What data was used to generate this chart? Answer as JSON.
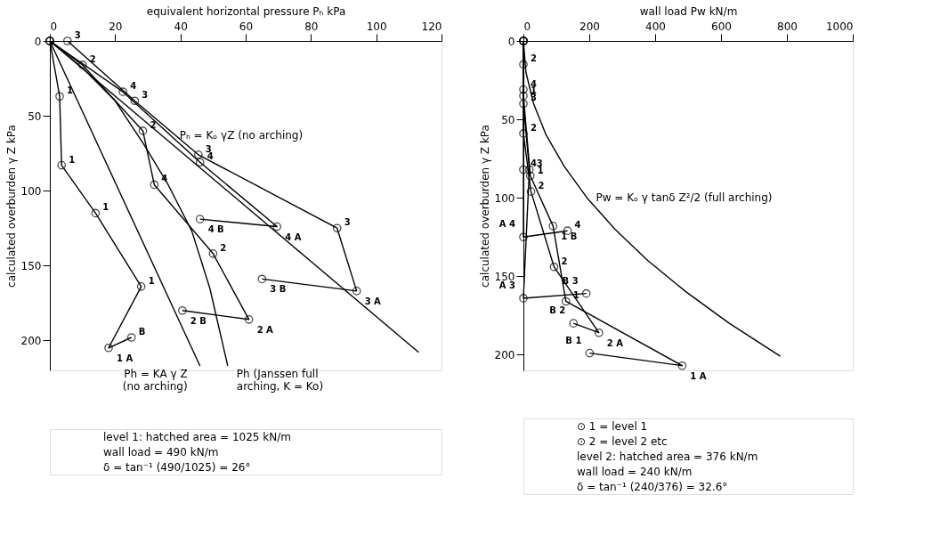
{
  "chart_data": [
    {
      "type": "line",
      "xlabel": "equivalent horizontal pressure Pₕ kPa",
      "ylabel": "calculated overburden γ Z kPa",
      "xlim": [
        0,
        120
      ],
      "xticks": [
        0,
        20,
        40,
        60,
        80,
        100,
        120
      ],
      "ylim": [
        220,
        0
      ],
      "yticks": [
        0,
        50,
        100,
        150,
        200
      ],
      "grid": false,
      "line_style": "solid",
      "series": [
        {
          "color": "#000000",
          "marker": "circle",
          "x": [
            0,
            3,
            3.6,
            14,
            28,
            18,
            25
          ],
          "values": [
            0,
            37,
            83,
            115,
            164,
            205,
            198
          ]
        },
        {
          "color": "#000000",
          "marker": "circle",
          "x": [
            0,
            10,
            28.5,
            32,
            50,
            61,
            40.6
          ],
          "values": [
            0,
            16,
            60,
            96,
            142,
            186,
            180
          ]
        },
        {
          "color": "#000000",
          "marker": "circle",
          "x": [
            5.4,
            26,
            45.5,
            88,
            94,
            65
          ],
          "values": [
            0,
            40,
            76,
            125,
            167,
            159
          ]
        },
        {
          "color": "#000000",
          "marker": "circle",
          "x": [
            0,
            22.4,
            46,
            69.6,
            46
          ],
          "values": [
            0,
            34,
            81,
            124,
            119
          ]
        },
        {
          "color": "#000000",
          "marker": "none",
          "x": [
            0,
            113
          ],
          "values": [
            0,
            208
          ]
        },
        {
          "color": "#000000",
          "marker": "none",
          "x": [
            0,
            46
          ],
          "values": [
            0,
            217
          ]
        },
        {
          "color": "#000000",
          "marker": "none",
          "x": [
            0,
            10,
            20,
            28.8,
            36,
            43.5,
            49,
            54.5
          ],
          "values": [
            0,
            18,
            40,
            69,
            95,
            127,
            165,
            217
          ]
        }
      ],
      "annotations": [
        {
          "text": "1",
          "x": 3,
          "y": 37
        },
        {
          "text": "1",
          "x": 3.6,
          "y": 83
        },
        {
          "text": "1",
          "x": 14,
          "y": 115
        },
        {
          "text": "1",
          "x": 28,
          "y": 164
        },
        {
          "text": "1 A",
          "x": 18,
          "y": 205
        },
        {
          "text": "B",
          "x": 25,
          "y": 198
        },
        {
          "text": "2",
          "x": 10,
          "y": 16
        },
        {
          "text": "2",
          "x": 28.5,
          "y": 60
        },
        {
          "text": "4",
          "x": 32,
          "y": 96
        },
        {
          "text": "2",
          "x": 50,
          "y": 142
        },
        {
          "text": "2 A",
          "x": 61,
          "y": 186
        },
        {
          "text": "2 B",
          "x": 40.6,
          "y": 180
        },
        {
          "text": "3",
          "x": 5.4,
          "y": 0
        },
        {
          "text": "3",
          "x": 26,
          "y": 40
        },
        {
          "text": "3",
          "x": 45.5,
          "y": 76
        },
        {
          "text": "3",
          "x": 88,
          "y": 125
        },
        {
          "text": "3 A",
          "x": 94,
          "y": 167
        },
        {
          "text": "3 B",
          "x": 65,
          "y": 159
        },
        {
          "text": "4",
          "x": 22.4,
          "y": 34
        },
        {
          "text": "4",
          "x": 46,
          "y": 81
        },
        {
          "text": "4 A",
          "x": 69.6,
          "y": 124
        },
        {
          "text": "4 B",
          "x": 46,
          "y": 119
        },
        {
          "text": "Pₕ = Kₒ γZ (no arching)",
          "x": 37,
          "y": 63
        },
        {
          "text": "Ph (Janssen full\narching, K = Ko)",
          "x": 54.5,
          "y": 217
        },
        {
          "text": "Ph = KA γ Z\n(no arching)",
          "x": 46,
          "y": 217
        },
        "level 1: hatched area = 1025 kN/m",
        "wall load = 490 kN/m",
        "δ = tan⁻¹ (490/1025) = 26°"
      ]
    },
    {
      "type": "line",
      "xlabel": "wall load Pw kN/m",
      "ylabel": "calculated overburden γ Z kPa",
      "xlim": [
        0,
        1000
      ],
      "xticks": [
        0,
        200,
        400,
        600,
        800,
        1000
      ],
      "ylim": [
        210,
        0
      ],
      "yticks": [
        0,
        50,
        100,
        150,
        200
      ],
      "grid": false,
      "line_style": "solid",
      "series": [
        {
          "color": "#000000",
          "marker": "circle",
          "x": [
            0,
            0,
            21,
            90,
            129,
            482,
            201
          ],
          "values": [
            0,
            35,
            86,
            118,
            166,
            207,
            199
          ]
        },
        {
          "color": "#000000",
          "marker": "circle",
          "x": [
            0,
            0,
            0,
            23,
            93,
            229,
            152
          ],
          "values": [
            0,
            15,
            59,
            96,
            144,
            186,
            180
          ]
        },
        {
          "color": "#000000",
          "marker": "circle",
          "x": [
            0,
            0,
            18,
            0,
            191
          ],
          "values": [
            0,
            40,
            82,
            164,
            161
          ]
        },
        {
          "color": "#000000",
          "marker": "circle",
          "x": [
            0,
            0,
            0,
            0,
            134
          ],
          "values": [
            0,
            31,
            82,
            125,
            121
          ]
        },
        {
          "color": "#000000",
          "marker": "none",
          "x": [
            0,
            7.7,
            31,
            69,
            124,
            193,
            278,
            378,
            494,
            625,
            780
          ],
          "values": [
            0,
            20,
            40,
            60,
            80,
            100,
            120,
            140,
            160,
            180,
            201
          ]
        }
      ],
      "annotations": [
        {
          "text": "1",
          "x": 0,
          "y": 35
        },
        {
          "text": "1",
          "x": 21,
          "y": 86
        },
        {
          "text": "1 B",
          "x": 90,
          "y": 118
        },
        {
          "text": "1",
          "x": 129,
          "y": 166
        },
        {
          "text": "1 A",
          "x": 482,
          "y": 207
        },
        {
          "text": "B 1",
          "x": 201,
          "y": 199
        },
        {
          "text": "2",
          "x": 0,
          "y": 15
        },
        {
          "text": "2",
          "x": 0,
          "y": 59
        },
        {
          "text": "2",
          "x": 23,
          "y": 96
        },
        {
          "text": "2",
          "x": 93,
          "y": 144
        },
        {
          "text": "2 A",
          "x": 229,
          "y": 186
        },
        {
          "text": "B 2",
          "x": 152,
          "y": 180
        },
        {
          "text": "3",
          "x": 0,
          "y": 40
        },
        {
          "text": "3",
          "x": 18,
          "y": 82
        },
        {
          "text": "A 3",
          "x": 0,
          "y": 164
        },
        {
          "text": "B 3",
          "x": 191,
          "y": 161
        },
        {
          "text": "4",
          "x": 0,
          "y": 31
        },
        {
          "text": "4",
          "x": 0,
          "y": 82
        },
        {
          "text": "A 4",
          "x": 0,
          "y": 125
        },
        {
          "text": "4",
          "x": 134,
          "y": 121
        },
        {
          "text": "Pw = Kₒ γ tanδ Z²/2 (full arching)",
          "x": 193,
          "y": 100
        },
        "⊙ 1 = level 1",
        "⊙ 2 = level 2 etc",
        "level 2: hatched area = 376 kN/m",
        "wall load = 240 kN/m",
        "δ = tan⁻¹ (240/376) = 32.6°"
      ]
    }
  ]
}
